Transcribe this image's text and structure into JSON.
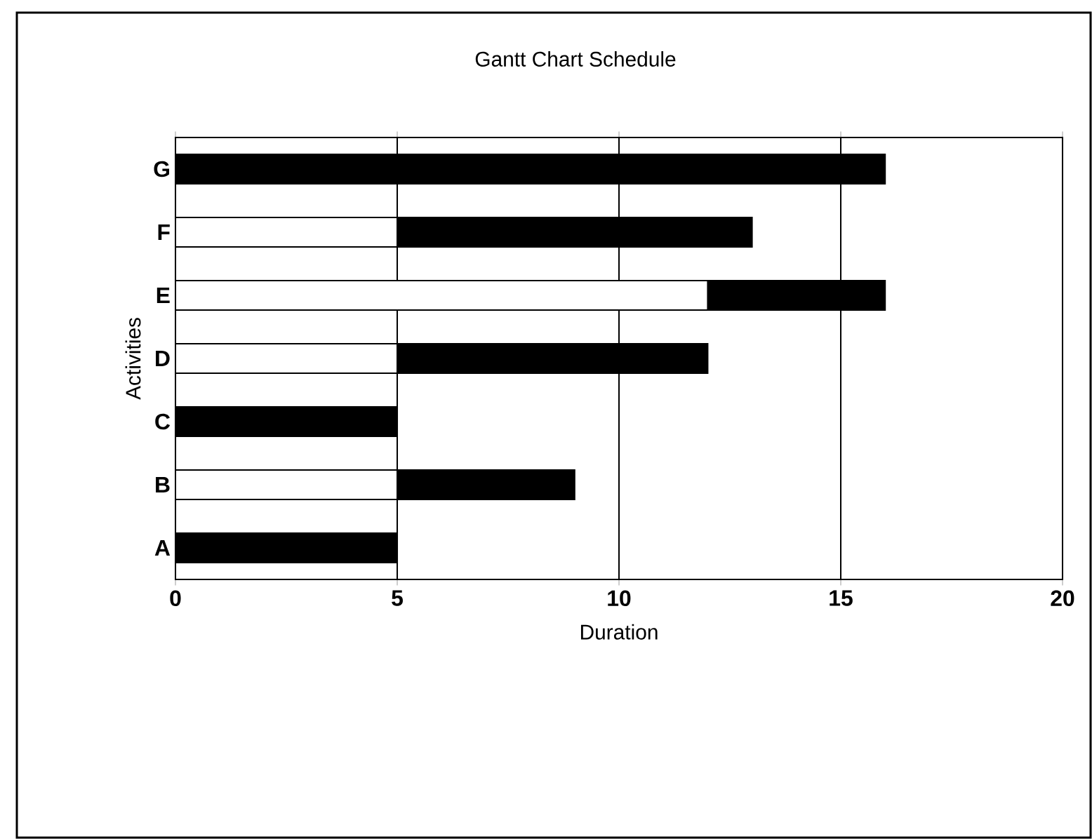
{
  "chart_data": {
    "type": "bar",
    "orientation": "horizontal",
    "stacked": true,
    "title": "Gantt Chart Schedule",
    "xlabel": "Duration",
    "ylabel": "Activities",
    "categories": [
      "G",
      "F",
      "E",
      "D",
      "C",
      "B",
      "A"
    ],
    "series": [
      {
        "color": "#ffffff",
        "values": [
          0,
          5,
          12,
          5,
          0,
          5,
          0
        ]
      },
      {
        "color": "#000000",
        "values": [
          16,
          8,
          4,
          7,
          5,
          4,
          5
        ]
      }
    ],
    "xlim": [
      0,
      20
    ],
    "xticks": [
      0,
      5,
      10,
      15,
      20
    ],
    "grid": "x"
  }
}
